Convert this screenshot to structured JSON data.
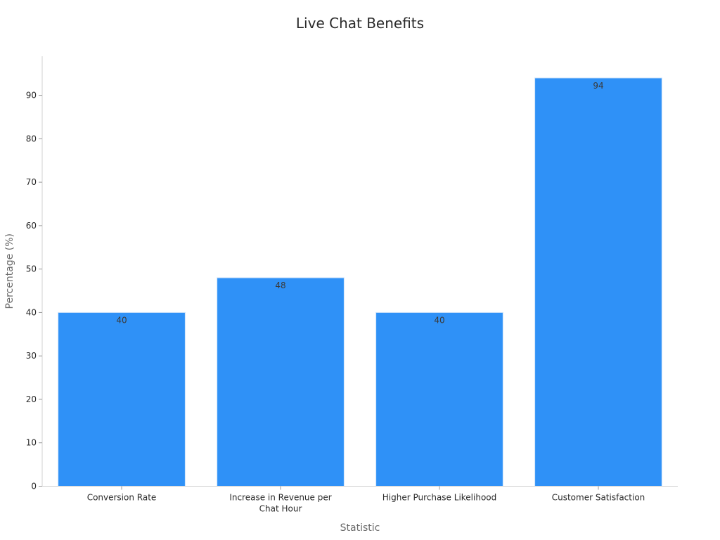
{
  "chart_data": {
    "type": "bar",
    "title": "Live Chat Benefits",
    "xlabel": "Statistic",
    "ylabel": "Percentage (%)",
    "categories": [
      [
        "Conversion Rate"
      ],
      [
        "Increase in Revenue per",
        "Chat Hour"
      ],
      [
        "Higher Purchase Likelihood"
      ],
      [
        "Customer Satisfaction"
      ]
    ],
    "values": [
      40,
      48,
      40,
      94
    ],
    "data_labels": [
      "40",
      "48",
      "40",
      "94"
    ],
    "yticks": [
      0,
      10,
      20,
      30,
      40,
      50,
      60,
      70,
      80,
      90
    ],
    "ylim": [
      0,
      99
    ],
    "grid": false,
    "legend": "none",
    "bar_color": "#2f91f7",
    "bar_edge_color": "#cfe3fb"
  }
}
